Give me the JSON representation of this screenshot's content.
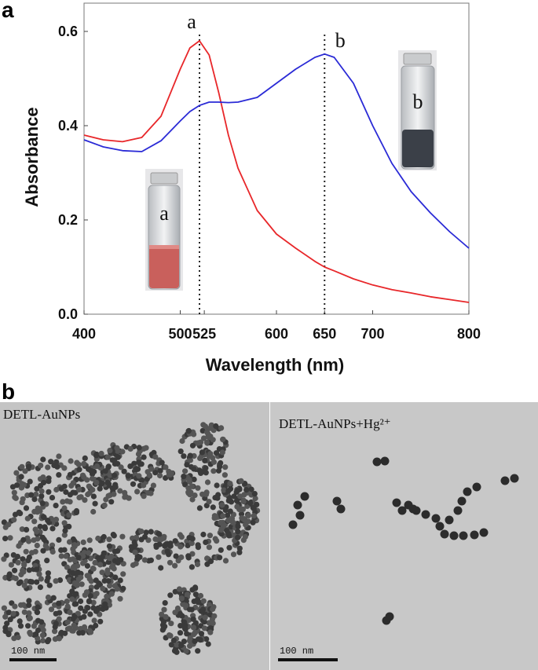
{
  "chart_data": {
    "type": "line",
    "panel_label": "a",
    "x_label": "Wavelength (nm)",
    "y_label": "Absorbance",
    "x": [
      400,
      420,
      440,
      460,
      480,
      500,
      510,
      520,
      530,
      540,
      550,
      560,
      580,
      600,
      620,
      640,
      650,
      660,
      680,
      700,
      720,
      740,
      760,
      780,
      800
    ],
    "series": [
      {
        "color": "#e8272a",
        "values": [
          0.38,
          0.37,
          0.366,
          0.375,
          0.42,
          0.52,
          0.565,
          0.58,
          0.55,
          0.47,
          0.38,
          0.31,
          0.22,
          0.17,
          0.14,
          0.112,
          0.1,
          0.092,
          0.075,
          0.062,
          0.052,
          0.045,
          0.037,
          0.031,
          0.025
        ]
      },
      {
        "color": "#2a2ad6",
        "values": [
          0.37,
          0.355,
          0.347,
          0.345,
          0.368,
          0.41,
          0.43,
          0.443,
          0.45,
          0.45,
          0.449,
          0.45,
          0.46,
          0.49,
          0.52,
          0.545,
          0.552,
          0.545,
          0.49,
          0.4,
          0.32,
          0.26,
          0.215,
          0.175,
          0.14
        ]
      }
    ],
    "xlim": [
      400,
      800
    ],
    "xticks": [
      400,
      500,
      525,
      600,
      650,
      700,
      800
    ],
    "ylim": [
      0,
      0.66
    ],
    "yticks": [
      {
        "value": 0,
        "label": "0.0"
      },
      0.2,
      0.4,
      0.6
    ],
    "annotations": [
      {
        "text": "a",
        "x": 520
      },
      {
        "text": "b",
        "x": 650
      }
    ],
    "insets": [
      {
        "label": "a"
      },
      {
        "label": "b"
      }
    ]
  },
  "tem_panel": {
    "panel_label": "b",
    "images": [
      {
        "label": "DETL-AuNPs",
        "scale_bar": "100 nm"
      },
      {
        "label": "DETL-AuNPs+Hg²⁺",
        "scale_bar": "100 nm"
      }
    ]
  }
}
